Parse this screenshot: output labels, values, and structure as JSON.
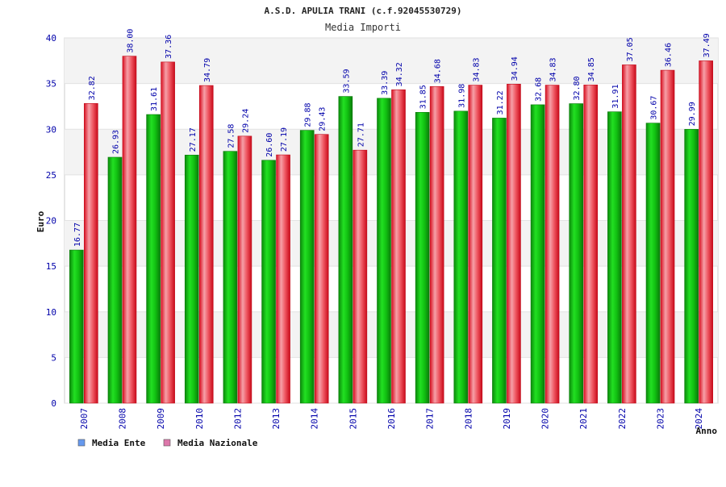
{
  "chart_data": {
    "type": "bar",
    "title": "A.S.D. APULIA TRANI (c.f.92045530729)",
    "subtitle": "Media Importi",
    "xlabel": "Anno",
    "ylabel": "Euro",
    "ylim": [
      0,
      40
    ],
    "yticks": [
      0,
      5,
      10,
      15,
      20,
      25,
      30,
      35,
      40
    ],
    "grid": "horizontal alternating bands",
    "legend_position": "bottom-left",
    "categories": [
      "2007",
      "2008",
      "2009",
      "2010",
      "2012",
      "2013",
      "2014",
      "2015",
      "2016",
      "2017",
      "2018",
      "2019",
      "2020",
      "2021",
      "2022",
      "2023",
      "2024"
    ],
    "series": [
      {
        "name": "Media Ente",
        "color": "#00aa00",
        "legend_color": "#6699ee",
        "values": [
          16.77,
          26.93,
          31.61,
          27.17,
          27.58,
          26.6,
          29.88,
          33.59,
          33.39,
          31.85,
          31.98,
          31.22,
          32.68,
          32.8,
          31.91,
          30.67,
          29.99
        ],
        "labels": [
          "16.77",
          "26.93",
          "31.61",
          "27.17",
          "27.58",
          "26.60",
          "29.88",
          "33.59",
          "33.39",
          "31.85",
          "31.98",
          "31.22",
          "32.68",
          "32.80",
          "31.91",
          "30.67",
          "29.99"
        ]
      },
      {
        "name": "Media Nazionale",
        "color": "#ee2233",
        "legend_color": "#dd77aa",
        "values": [
          32.82,
          38.0,
          37.36,
          34.79,
          29.24,
          27.19,
          29.43,
          27.71,
          34.32,
          34.68,
          34.83,
          34.94,
          34.83,
          34.85,
          37.05,
          36.46,
          37.49
        ],
        "labels": [
          "32.82",
          "38.00",
          "37.36",
          "34.79",
          "29.24",
          "27.19",
          "29.43",
          "27.71",
          "34.32",
          "34.68",
          "34.83",
          "34.94",
          "34.83",
          "34.85",
          "37.05",
          "36.46",
          "37.49"
        ]
      }
    ]
  }
}
